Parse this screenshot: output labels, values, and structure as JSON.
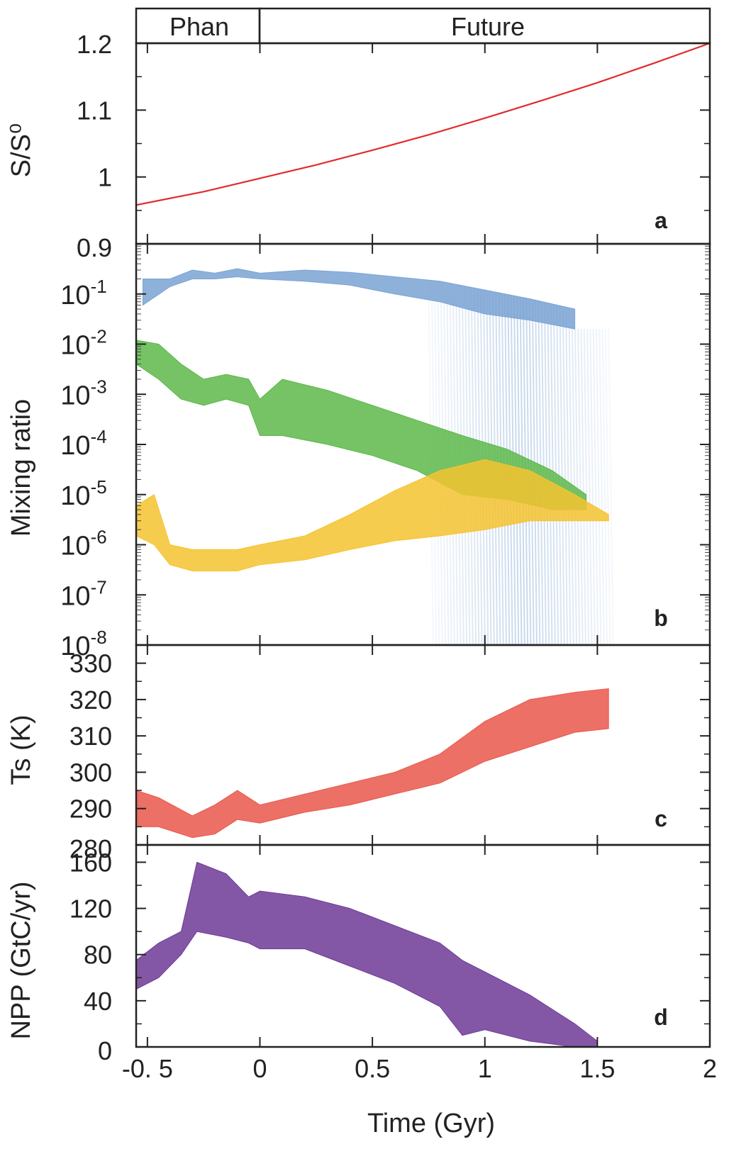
{
  "header": {
    "segments": [
      {
        "label": "Phan",
        "start": -0.55,
        "end": 0
      },
      {
        "label": "Future",
        "start": 0,
        "end": 2
      }
    ]
  },
  "xaxis": {
    "label": "Time (Gyr)",
    "range": [
      -0.55,
      2
    ],
    "ticks": [
      -0.5,
      0,
      0.5,
      1,
      1.5,
      2
    ],
    "tick_labels": [
      "-0. 5",
      "0",
      "0.5",
      "1",
      "1.5",
      "2"
    ]
  },
  "chart_data": [
    {
      "panel": "a",
      "type": "line",
      "ylabel": "S/S⁰",
      "ylim": [
        0.9,
        1.2
      ],
      "yticks": [
        0.9,
        1.0,
        1.1,
        1.2
      ],
      "ytick_labels": [
        "0.9",
        "1",
        "1.1",
        "1.2"
      ],
      "series": [
        {
          "color": "#e32b2b",
          "x": [
            -0.55,
            -0.25,
            0,
            0.25,
            0.5,
            0.75,
            1.0,
            1.25,
            1.5,
            1.75,
            2.0
          ],
          "y": [
            0.958,
            0.978,
            0.998,
            1.018,
            1.04,
            1.063,
            1.088,
            1.114,
            1.141,
            1.17,
            1.2
          ]
        }
      ]
    },
    {
      "panel": "b",
      "type": "area",
      "scale": "log",
      "ylabel": "Mixing ratio",
      "ylim": [
        1e-08,
        1
      ],
      "ytick_labels": [
        {
          "base": "10",
          "exp": "-1",
          "value": 0.1
        },
        {
          "base": "10",
          "exp": "-2",
          "value": 0.01
        },
        {
          "base": "10",
          "exp": "-3",
          "value": 0.001
        },
        {
          "base": "10",
          "exp": "-4",
          "value": 0.0001
        },
        {
          "base": "10",
          "exp": "-5",
          "value": 1e-05
        },
        {
          "base": "10",
          "exp": "-6",
          "value": 1e-06
        },
        {
          "base": "10",
          "exp": "-7",
          "value": 1e-07
        },
        {
          "base": "10",
          "exp": "-8",
          "value": 1e-08
        }
      ],
      "series": [
        {
          "color": "#7aa3d4",
          "x": [
            -0.52,
            -0.4,
            -0.3,
            -0.2,
            -0.1,
            0,
            0.2,
            0.4,
            0.6,
            0.8,
            1.0,
            1.2,
            1.4
          ],
          "upper": [
            0.2,
            0.2,
            0.3,
            0.26,
            0.32,
            0.26,
            0.3,
            0.27,
            0.22,
            0.18,
            0.12,
            0.08,
            0.05
          ],
          "lower": [
            0.06,
            0.14,
            0.2,
            0.2,
            0.22,
            0.2,
            0.18,
            0.15,
            0.1,
            0.07,
            0.04,
            0.03,
            0.02
          ],
          "collapse": {
            "x_start": 0.75,
            "x_end": 1.55,
            "to": 1e-08
          }
        },
        {
          "color": "#5db84a",
          "x": [
            -0.55,
            -0.45,
            -0.35,
            -0.25,
            -0.15,
            -0.05,
            0,
            0.1,
            0.3,
            0.5,
            0.7,
            0.9,
            1.1,
            1.3,
            1.45
          ],
          "upper": [
            0.012,
            0.01,
            0.004,
            0.002,
            0.0025,
            0.002,
            0.0008,
            0.002,
            0.0012,
            0.0006,
            0.0003,
            0.00015,
            8e-05,
            3e-05,
            1e-05
          ],
          "lower": [
            0.004,
            0.002,
            0.0008,
            0.0006,
            0.0008,
            0.0006,
            0.00015,
            0.00015,
            0.0001,
            6e-05,
            3e-05,
            1e-05,
            8e-06,
            5e-06,
            5e-06
          ]
        },
        {
          "color": "#f5c330",
          "x": [
            -0.55,
            -0.47,
            -0.4,
            -0.3,
            -0.2,
            -0.1,
            0,
            0.2,
            0.4,
            0.6,
            0.8,
            1.0,
            1.2,
            1.4,
            1.55
          ],
          "upper": [
            6e-06,
            1e-05,
            1e-06,
            8e-07,
            8e-07,
            8e-07,
            1e-06,
            1.5e-06,
            4e-06,
            1.2e-05,
            3e-05,
            5e-05,
            3e-05,
            1e-05,
            4e-06
          ],
          "lower": [
            1.5e-06,
            1e-06,
            4e-07,
            3e-07,
            3e-07,
            3e-07,
            4e-07,
            5e-07,
            8e-07,
            1.2e-06,
            1.5e-06,
            2e-06,
            3e-06,
            3e-06,
            3e-06
          ]
        }
      ]
    },
    {
      "panel": "c",
      "type": "area",
      "ylabel": "Ts (K)",
      "ylim": [
        280,
        335
      ],
      "yticks": [
        280,
        290,
        300,
        310,
        320,
        330
      ],
      "ytick_labels": [
        "280",
        "290",
        "300",
        "310",
        "320",
        "330"
      ],
      "series": [
        {
          "color": "#e9574b",
          "x": [
            -0.55,
            -0.45,
            -0.3,
            -0.2,
            -0.1,
            0,
            0.2,
            0.4,
            0.6,
            0.8,
            1.0,
            1.2,
            1.4,
            1.55
          ],
          "upper": [
            295,
            293,
            288,
            291,
            295,
            291,
            294,
            297,
            300,
            305,
            314,
            320,
            322,
            323
          ],
          "lower": [
            285,
            285,
            282,
            283,
            287,
            286,
            289,
            291,
            294,
            297,
            303,
            307,
            311,
            312
          ]
        }
      ]
    },
    {
      "panel": "d",
      "type": "area",
      "ylabel": "NPP (GtC/yr)",
      "ylim": [
        0,
        175
      ],
      "yticks": [
        0,
        40,
        80,
        120,
        160
      ],
      "ytick_labels": [
        "0",
        "40",
        "80",
        "120",
        "160"
      ],
      "series": [
        {
          "color": "#6e3a96",
          "x": [
            -0.55,
            -0.45,
            -0.35,
            -0.28,
            -0.15,
            -0.05,
            0,
            0.2,
            0.4,
            0.6,
            0.8,
            0.9,
            1.0,
            1.2,
            1.4,
            1.5
          ],
          "upper": [
            75,
            90,
            100,
            160,
            150,
            130,
            135,
            130,
            120,
            105,
            90,
            75,
            65,
            45,
            20,
            5
          ],
          "lower": [
            50,
            60,
            80,
            100,
            95,
            90,
            85,
            85,
            70,
            55,
            35,
            10,
            15,
            5,
            0,
            0
          ]
        }
      ]
    }
  ],
  "panel_letters": [
    "a",
    "b",
    "c",
    "d"
  ]
}
